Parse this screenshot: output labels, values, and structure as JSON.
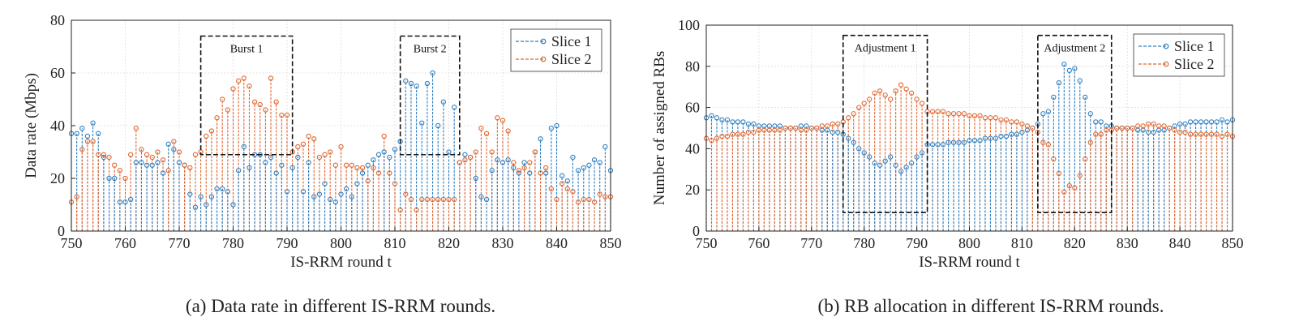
{
  "chart_data": [
    {
      "type": "stem",
      "caption": "(a) Data rate in different IS-RRM rounds.",
      "xlabel": "IS-RRM round t",
      "ylabel": "Data rate (Mbps)",
      "xlim": [
        750,
        850
      ],
      "ylim": [
        0,
        80
      ],
      "xticks": [
        750,
        760,
        770,
        780,
        790,
        800,
        810,
        820,
        830,
        840,
        850
      ],
      "yticks": [
        0,
        20,
        40,
        60,
        80
      ],
      "legend_position": "top-right",
      "annotations": [
        {
          "label": "Burst 1",
          "x_range": [
            774,
            791
          ],
          "y_range": [
            29,
            74
          ]
        },
        {
          "label": "Burst 2",
          "x_range": [
            811,
            822
          ],
          "y_range": [
            29,
            74
          ]
        }
      ],
      "series": [
        {
          "name": "Slice 1",
          "color": "#2f7fc1",
          "x": [
            750,
            751,
            752,
            753,
            754,
            755,
            756,
            757,
            758,
            759,
            760,
            761,
            762,
            763,
            764,
            765,
            766,
            767,
            768,
            769,
            770,
            771,
            772,
            773,
            774,
            775,
            776,
            777,
            778,
            779,
            780,
            781,
            782,
            783,
            784,
            785,
            786,
            787,
            788,
            789,
            790,
            791,
            792,
            793,
            794,
            795,
            796,
            797,
            798,
            799,
            800,
            801,
            802,
            803,
            804,
            805,
            806,
            807,
            808,
            809,
            810,
            811,
            812,
            813,
            814,
            815,
            816,
            817,
            818,
            819,
            820,
            821,
            822,
            823,
            824,
            825,
            826,
            827,
            828,
            829,
            830,
            831,
            832,
            833,
            834,
            835,
            836,
            837,
            838,
            839,
            840,
            841,
            842,
            843,
            844,
            845,
            846,
            847,
            848,
            849,
            850
          ],
          "y": [
            37,
            37,
            39,
            36,
            41,
            37,
            28,
            20,
            20,
            11,
            11,
            12,
            26,
            26,
            25,
            25,
            26,
            22,
            33,
            31,
            26,
            25,
            14,
            9,
            13,
            10,
            13,
            16,
            16,
            15,
            10,
            23,
            32,
            24,
            29,
            29,
            26,
            28,
            22,
            25,
            15,
            24,
            28,
            15,
            26,
            13,
            14,
            18,
            12,
            11,
            14,
            16,
            13,
            18,
            22,
            25,
            27,
            29,
            30,
            28,
            31,
            34,
            57,
            56,
            55,
            41,
            56,
            60,
            40,
            49,
            30,
            47,
            26,
            29,
            28,
            20,
            13,
            12,
            23,
            27,
            26,
            27,
            24,
            22,
            26,
            22,
            30,
            35,
            22,
            39,
            40,
            21,
            19,
            28,
            23,
            24,
            25,
            27,
            26,
            32,
            23
          ]
        },
        {
          "name": "Slice 2",
          "color": "#e0662f",
          "x": [
            750,
            751,
            752,
            753,
            754,
            755,
            756,
            757,
            758,
            759,
            760,
            761,
            762,
            763,
            764,
            765,
            766,
            767,
            768,
            769,
            770,
            771,
            772,
            773,
            774,
            775,
            776,
            777,
            778,
            779,
            780,
            781,
            782,
            783,
            784,
            785,
            786,
            787,
            788,
            789,
            790,
            791,
            792,
            793,
            794,
            795,
            796,
            797,
            798,
            799,
            800,
            801,
            802,
            803,
            804,
            805,
            806,
            807,
            808,
            809,
            810,
            811,
            812,
            813,
            814,
            815,
            816,
            817,
            818,
            819,
            820,
            821,
            822,
            823,
            824,
            825,
            826,
            827,
            828,
            829,
            830,
            831,
            832,
            833,
            834,
            835,
            836,
            837,
            838,
            839,
            840,
            841,
            842,
            843,
            844,
            845,
            846,
            847,
            848,
            849,
            850
          ],
          "y": [
            11,
            13,
            31,
            34,
            34,
            29,
            29,
            28,
            25,
            23,
            20,
            29,
            39,
            31,
            29,
            28,
            30,
            27,
            23,
            34,
            30,
            25,
            24,
            29,
            30,
            36,
            38,
            43,
            50,
            46,
            54,
            57,
            58,
            55,
            49,
            48,
            46,
            58,
            49,
            44,
            44,
            30,
            32,
            33,
            36,
            35,
            28,
            29,
            30,
            25,
            32,
            25,
            25,
            24,
            24,
            19,
            24,
            22,
            36,
            22,
            18,
            8,
            14,
            12,
            8,
            12,
            12,
            12,
            12,
            12,
            12,
            12,
            26,
            27,
            28,
            30,
            39,
            37,
            30,
            43,
            42,
            38,
            26,
            23,
            24,
            26,
            30,
            22,
            24,
            16,
            12,
            18,
            16,
            15,
            11,
            12,
            12,
            11,
            14,
            13,
            13
          ]
        }
      ]
    },
    {
      "type": "stem",
      "caption": "(b) RB allocation in different IS-RRM rounds.",
      "xlabel": "IS-RRM round t",
      "ylabel": "Number of assigned RBs",
      "xlim": [
        750,
        850
      ],
      "ylim": [
        0,
        100
      ],
      "xticks": [
        750,
        760,
        770,
        780,
        790,
        800,
        810,
        820,
        830,
        840,
        850
      ],
      "yticks": [
        0,
        20,
        40,
        60,
        80,
        100
      ],
      "legend_position": "top-right",
      "annotations": [
        {
          "label": "Adjustment 1",
          "x_range": [
            776,
            792
          ],
          "y_range": [
            9,
            95
          ]
        },
        {
          "label": "Adjustment 2",
          "x_range": [
            813,
            827
          ],
          "y_range": [
            9,
            95
          ]
        }
      ],
      "series": [
        {
          "name": "Slice 1",
          "color": "#2f7fc1",
          "x": [
            750,
            751,
            752,
            753,
            754,
            755,
            756,
            757,
            758,
            759,
            760,
            761,
            762,
            763,
            764,
            765,
            766,
            767,
            768,
            769,
            770,
            771,
            772,
            773,
            774,
            775,
            776,
            777,
            778,
            779,
            780,
            781,
            782,
            783,
            784,
            785,
            786,
            787,
            788,
            789,
            790,
            791,
            792,
            793,
            794,
            795,
            796,
            797,
            798,
            799,
            800,
            801,
            802,
            803,
            804,
            805,
            806,
            807,
            808,
            809,
            810,
            811,
            812,
            813,
            814,
            815,
            816,
            817,
            818,
            819,
            820,
            821,
            822,
            823,
            824,
            825,
            826,
            827,
            828,
            829,
            830,
            831,
            832,
            833,
            834,
            835,
            836,
            837,
            838,
            839,
            840,
            841,
            842,
            843,
            844,
            845,
            846,
            847,
            848,
            849,
            850
          ],
          "y": [
            55,
            56,
            55,
            54,
            54,
            53,
            53,
            53,
            52,
            52,
            51,
            51,
            51,
            51,
            51,
            50,
            50,
            50,
            51,
            51,
            50,
            50,
            49,
            49,
            48,
            48,
            47,
            45,
            43,
            40,
            38,
            36,
            33,
            32,
            34,
            36,
            32,
            29,
            31,
            33,
            36,
            38,
            42,
            42,
            42,
            42,
            43,
            43,
            43,
            43,
            44,
            44,
            44,
            45,
            45,
            45,
            46,
            46,
            47,
            47,
            48,
            49,
            50,
            52,
            57,
            58,
            65,
            72,
            81,
            78,
            79,
            73,
            65,
            57,
            53,
            53,
            51,
            51,
            50,
            50,
            50,
            50,
            49,
            49,
            48,
            48,
            49,
            49,
            50,
            51,
            52,
            52,
            53,
            53,
            53,
            53,
            53,
            53,
            54,
            53,
            54
          ]
        },
        {
          "name": "Slice 2",
          "color": "#e0662f",
          "x": [
            750,
            751,
            752,
            753,
            754,
            755,
            756,
            757,
            758,
            759,
            760,
            761,
            762,
            763,
            764,
            765,
            766,
            767,
            768,
            769,
            770,
            771,
            772,
            773,
            774,
            775,
            776,
            777,
            778,
            779,
            780,
            781,
            782,
            783,
            784,
            785,
            786,
            787,
            788,
            789,
            790,
            791,
            792,
            793,
            794,
            795,
            796,
            797,
            798,
            799,
            800,
            801,
            802,
            803,
            804,
            805,
            806,
            807,
            808,
            809,
            810,
            811,
            812,
            813,
            814,
            815,
            816,
            817,
            818,
            819,
            820,
            821,
            822,
            823,
            824,
            825,
            826,
            827,
            828,
            829,
            830,
            831,
            832,
            833,
            834,
            835,
            836,
            837,
            838,
            839,
            840,
            841,
            842,
            843,
            844,
            845,
            846,
            847,
            848,
            849,
            850
          ],
          "y": [
            45,
            44,
            45,
            46,
            46,
            47,
            47,
            47,
            48,
            48,
            49,
            49,
            49,
            49,
            49,
            50,
            50,
            50,
            49,
            49,
            50,
            50,
            51,
            51,
            52,
            52,
            53,
            55,
            57,
            60,
            62,
            64,
            67,
            68,
            66,
            64,
            68,
            71,
            69,
            67,
            64,
            62,
            58,
            58,
            58,
            58,
            57,
            57,
            57,
            57,
            56,
            56,
            56,
            55,
            55,
            55,
            54,
            54,
            53,
            53,
            52,
            51,
            50,
            48,
            43,
            42,
            35,
            28,
            19,
            22,
            21,
            27,
            35,
            43,
            47,
            47,
            49,
            49,
            50,
            50,
            50,
            50,
            51,
            51,
            52,
            52,
            51,
            51,
            50,
            49,
            48,
            48,
            47,
            47,
            47,
            47,
            47,
            47,
            46,
            47,
            46
          ]
        }
      ]
    }
  ]
}
